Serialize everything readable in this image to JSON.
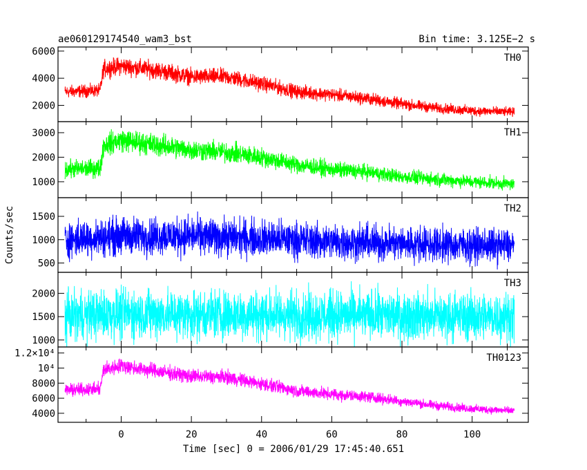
{
  "header": {
    "title": "ae060129174540_wam3_bst",
    "bin_time": "Bin time: 3.125E−2 s"
  },
  "chart_data": {
    "type": "line",
    "title": "ae060129174540_wam3_bst",
    "xlabel": "Time [sec] 0 = 2006/01/29 17:45:40.651",
    "ylabel": "Counts/sec",
    "xlim": [
      -18,
      116
    ],
    "x_ticks": [
      0,
      20,
      40,
      60,
      80,
      100
    ],
    "x_tick_labels": [
      "0",
      "20",
      "40",
      "60",
      "80",
      "100"
    ],
    "time_range": [
      -16,
      112
    ],
    "panels": [
      {
        "name": "TH0",
        "color": "#ff0000",
        "ylim": [
          800,
          6300
        ],
        "y_ticks": [
          2000,
          4000,
          6000
        ],
        "y_tick_labels": [
          "2000",
          "4000",
          "6000"
        ],
        "level_x": [
          -16,
          -6,
          -5,
          0,
          10,
          20,
          30,
          40,
          50,
          60,
          70,
          80,
          90,
          100,
          112
        ],
        "level_y": [
          3000,
          3100,
          4700,
          4900,
          4600,
          4100,
          4100,
          3600,
          3000,
          2800,
          2500,
          2100,
          1800,
          1600,
          1500
        ],
        "spread": [
          500,
          500,
          700,
          700,
          700,
          650,
          650,
          600,
          550,
          500,
          500,
          450,
          400,
          400,
          350
        ]
      },
      {
        "name": "TH1",
        "color": "#00ff00",
        "ylim": [
          350,
          3450
        ],
        "y_ticks": [
          1000,
          2000,
          3000
        ],
        "y_tick_labels": [
          "1000",
          "2000",
          "3000"
        ],
        "level_x": [
          -16,
          -6,
          -5,
          0,
          10,
          20,
          30,
          40,
          50,
          60,
          70,
          80,
          90,
          100,
          112
        ],
        "level_y": [
          1500,
          1550,
          2500,
          2700,
          2500,
          2300,
          2200,
          2000,
          1700,
          1500,
          1400,
          1200,
          1100,
          1000,
          900
        ],
        "spread": [
          400,
          400,
          500,
          500,
          500,
          450,
          450,
          420,
          380,
          350,
          330,
          300,
          300,
          280,
          260
        ]
      },
      {
        "name": "TH2",
        "color": "#0000ff",
        "ylim": [
          300,
          1900
        ],
        "y_ticks": [
          500,
          1000,
          1500
        ],
        "y_tick_labels": [
          "500",
          "1000",
          "1500"
        ],
        "level_x": [
          -16,
          0,
          20,
          40,
          60,
          80,
          100,
          112
        ],
        "level_y": [
          1000,
          1080,
          1080,
          1030,
          960,
          920,
          880,
          860
        ],
        "spread": [
          420,
          440,
          440,
          430,
          420,
          410,
          400,
          400
        ]
      },
      {
        "name": "TH3",
        "color": "#00ffff",
        "ylim": [
          850,
          2450
        ],
        "y_ticks": [
          1000,
          1500,
          2000
        ],
        "y_tick_labels": [
          "1000",
          "1500",
          "2000"
        ],
        "level_x": [
          -16,
          0,
          40,
          80,
          112
        ],
        "level_y": [
          1520,
          1560,
          1540,
          1520,
          1500
        ],
        "spread": [
          560,
          580,
          580,
          570,
          560
        ]
      },
      {
        "name": "TH0123",
        "color": "#ff00ff",
        "ylim": [
          2800,
          12800
        ],
        "y_ticks": [
          4000,
          6000,
          8000,
          10000,
          12000
        ],
        "y_tick_labels": [
          "4000",
          "6000",
          "8000",
          "10⁴",
          "1.2×10⁴"
        ],
        "level_x": [
          -16,
          -6,
          -5,
          0,
          10,
          20,
          30,
          40,
          50,
          60,
          70,
          80,
          90,
          100,
          112
        ],
        "level_y": [
          7100,
          7200,
          9800,
          10300,
          9600,
          8900,
          8800,
          7900,
          7000,
          6500,
          6200,
          5600,
          5000,
          4600,
          4300
        ],
        "spread": [
          900,
          900,
          1100,
          1100,
          1050,
          1000,
          1000,
          950,
          900,
          850,
          800,
          700,
          650,
          600,
          550
        ]
      }
    ]
  }
}
